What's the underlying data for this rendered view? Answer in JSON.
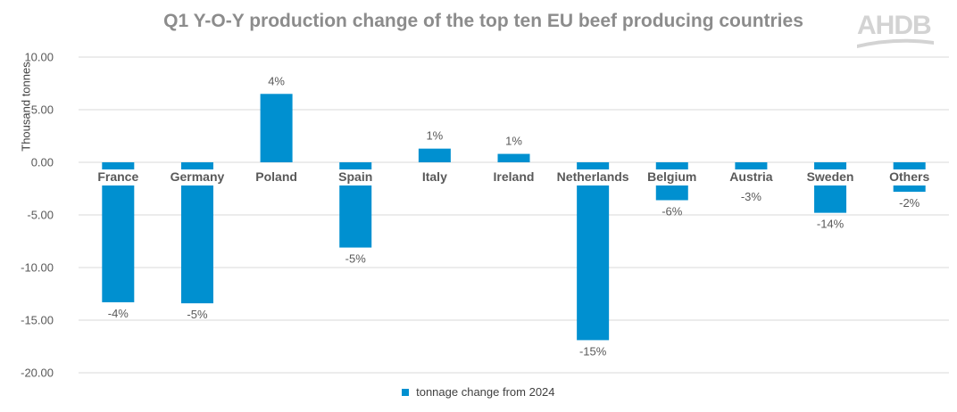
{
  "logo_text": "AHDB",
  "chart_data": {
    "type": "bar",
    "title": "Q1 Y-O-Y production change of the top ten EU beef producing countries",
    "ylabel": "Thousand tonnes",
    "xlabel": "",
    "ylim": [
      -20,
      10
    ],
    "yticks": [
      "10.00",
      "5.00",
      "0.00",
      "-5.00",
      "-10.00",
      "-15.00",
      "-20.00"
    ],
    "ytick_values": [
      10,
      5,
      0,
      -5,
      -10,
      -15,
      -20
    ],
    "grid": true,
    "legend_position": "bottom",
    "bar_color": "#0090d0",
    "categories": [
      "France",
      "Germany",
      "Poland",
      "Spain",
      "Italy",
      "Ireland",
      "Netherlands",
      "Belgium",
      "Austria",
      "Sweden",
      "Others"
    ],
    "series": [
      {
        "name": "tonnage change from 2024",
        "values": [
          -13.3,
          -13.4,
          6.5,
          -8.1,
          1.3,
          0.8,
          -16.9,
          -3.6,
          -0.8,
          -4.8,
          -2.8
        ],
        "data_labels": [
          "-4%",
          "-5%",
          "4%",
          "-5%",
          "1%",
          "1%",
          "-15%",
          "-6%",
          "-3%",
          "-14%",
          "-2%"
        ]
      }
    ]
  }
}
